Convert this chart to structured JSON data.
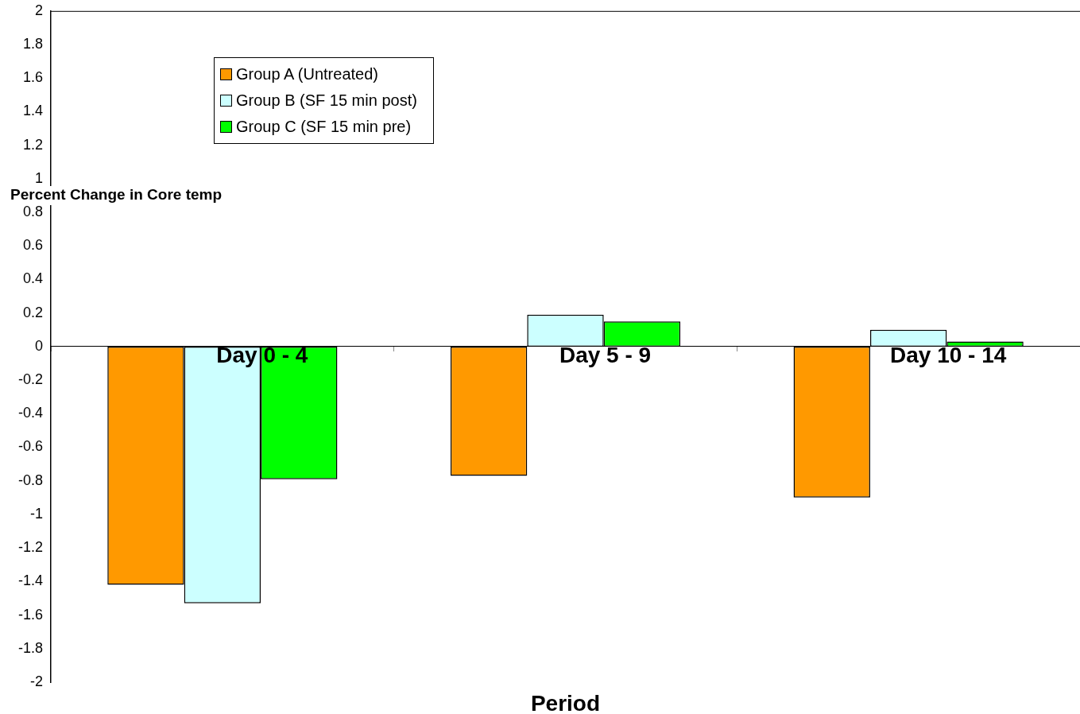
{
  "chart_data": {
    "type": "bar",
    "xlabel": "Period",
    "ylabel": "Percent Change in Core temp",
    "categories": [
      "Day 0 - 4",
      "Day 5 - 9",
      "Day 10 - 14"
    ],
    "series": [
      {
        "name": "Group A (Untreated)",
        "color": "#ff9900",
        "values": [
          -1.42,
          -0.77,
          -0.9
        ]
      },
      {
        "name": "Group B (SF 15 min post)",
        "color": "#ccffff",
        "values": [
          -1.53,
          0.19,
          0.1
        ]
      },
      {
        "name": "Group C (SF 15 min pre)",
        "color": "#00ff00",
        "values": [
          -0.79,
          0.15,
          0.03
        ]
      }
    ],
    "ylim": [
      -2,
      2
    ],
    "yticks": [
      -2,
      -1.8,
      -1.6,
      -1.4,
      -1.2,
      -1,
      -0.8,
      -0.6,
      -0.4,
      -0.2,
      0,
      0.2,
      0.4,
      0.6,
      0.8,
      1,
      1.2,
      1.4,
      1.6,
      1.8,
      2
    ],
    "grid": false,
    "legend": "top left"
  }
}
